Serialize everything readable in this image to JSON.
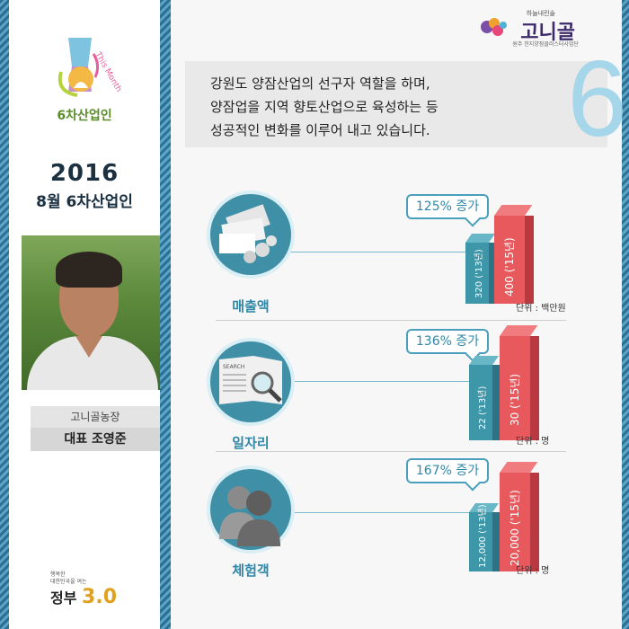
{
  "sidebar": {
    "badge_top": "This Month",
    "badge_label": "6차산업인",
    "year": "2016",
    "month_title": "8월 6차산업인",
    "farm_name": "고니골농장",
    "ceo_name": "대표 조영준",
    "gov_small_1": "행복한",
    "gov_small_2": "대한민국을 여는",
    "gov_big": "정부",
    "gov_num": "3.0"
  },
  "brand": {
    "tagline": "하늘내린술",
    "name": "고니골",
    "sub": "원주 한지양잠클러스터사업단"
  },
  "intro": {
    "lines": [
      "강원도 양잠산업의 선구자 역할을 하며,",
      "양잠업을  지역 향토산업으로  육성하는 등",
      "성공적인 변화를 이루어 내고 있습니다."
    ],
    "big_number": "6"
  },
  "stats": [
    {
      "label": "매출액",
      "increase": "125% 증가",
      "small_label": "320 ('13년)",
      "big_label": "400 ('15년)",
      "unit": "단위 : 백만원",
      "icon": "money-icon"
    },
    {
      "label": "일자리",
      "increase": "136% 증가",
      "small_label": "22 ('13년)",
      "big_label": "30 ('15년)",
      "unit": "단위 : 명",
      "icon": "newspaper-search-icon"
    },
    {
      "label": "체험객",
      "increase": "167% 증가",
      "small_label": "12,000 ('13년)",
      "big_label": "20,000 ('15년)",
      "unit": "단위 : 명",
      "icon": "people-icon"
    }
  ],
  "colors": {
    "accent": "#2e87a8",
    "bar_2013": "#3e96a9",
    "bar_2015": "#e8595e",
    "brand_purple": "#3e2b6b",
    "badge_green": "#5b8c2a"
  }
}
